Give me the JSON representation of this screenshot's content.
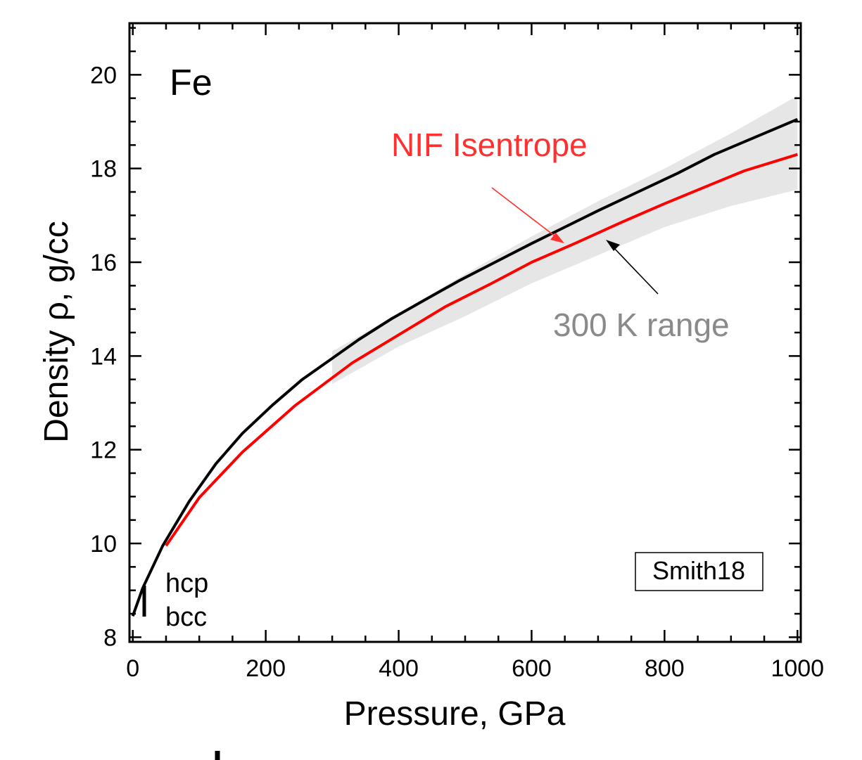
{
  "chart_data": {
    "type": "line",
    "xlabel": "Pressure, GPa",
    "ylabel": "Density ρ,  g/cc",
    "xlim": [
      -5,
      1005
    ],
    "ylim": [
      7.9,
      21.1
    ],
    "x_ticks": [
      0,
      200,
      400,
      600,
      800,
      1000
    ],
    "y_ticks": [
      8,
      10,
      12,
      14,
      16,
      18,
      20
    ],
    "grid": false,
    "legend": "none",
    "annotations": {
      "material": "Fe",
      "nif_label": "NIF Isentrope",
      "range_label": "300 K range",
      "hcp_label": "hcp",
      "bcc_label": "bcc",
      "reference": "Smith18"
    },
    "series": [
      {
        "color": "#000000",
        "x": [
          0,
          15,
          45,
          85,
          125,
          165,
          210,
          255,
          300,
          340,
          390,
          440,
          490,
          545,
          600,
          650,
          700,
          760,
          820,
          875,
          925,
          1000
        ],
        "y": [
          8.45,
          9.05,
          9.95,
          10.9,
          11.7,
          12.35,
          12.95,
          13.5,
          13.95,
          14.35,
          14.8,
          15.2,
          15.6,
          16.0,
          16.4,
          16.75,
          17.1,
          17.5,
          17.9,
          18.3,
          18.6,
          19.05
        ]
      },
      {
        "color": "#ff0000",
        "x": [
          50,
          100,
          165,
          245,
          330,
          400,
          470,
          540,
          600,
          665,
          735,
          800,
          860,
          920,
          1000
        ],
        "y": [
          9.95,
          10.98,
          11.95,
          12.95,
          13.85,
          14.45,
          15.05,
          15.55,
          16.0,
          16.4,
          16.85,
          17.25,
          17.6,
          17.95,
          18.3
        ]
      }
    ],
    "band": {
      "color": "#e6e6e6",
      "x": [
        300,
        400,
        500,
        600,
        700,
        800,
        900,
        1000
      ],
      "upper": [
        14.1,
        14.9,
        15.75,
        16.55,
        17.3,
        18.0,
        18.75,
        19.55
      ],
      "lower": [
        13.4,
        14.2,
        14.85,
        15.55,
        16.15,
        16.75,
        17.2,
        17.55
      ]
    }
  }
}
